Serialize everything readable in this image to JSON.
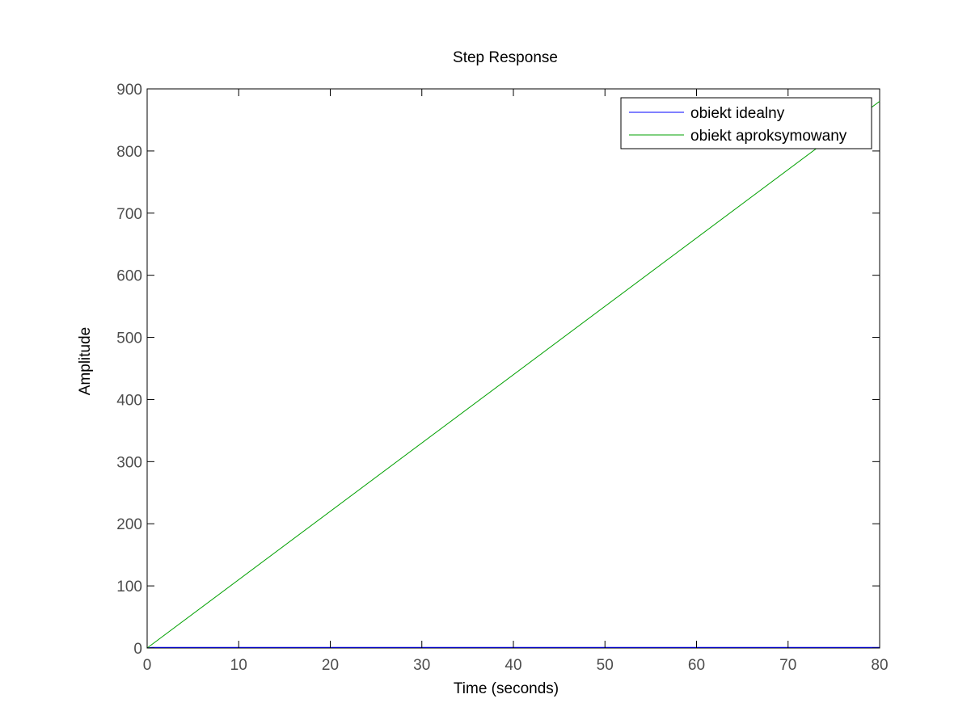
{
  "chart_data": {
    "type": "line",
    "title": "Step Response",
    "xlabel": "Time (seconds)",
    "ylabel": "Amplitude",
    "xlim": [
      0,
      80
    ],
    "ylim": [
      0,
      900
    ],
    "xticks": [
      0,
      10,
      20,
      30,
      40,
      50,
      60,
      70,
      80
    ],
    "yticks": [
      0,
      100,
      200,
      300,
      400,
      500,
      600,
      700,
      800,
      900
    ],
    "grid": false,
    "legend_position": "top-right",
    "series": [
      {
        "name": "obiekt idealny",
        "color": "#0000ff",
        "x": [
          0,
          0.5,
          1,
          80
        ],
        "y": [
          0,
          1,
          1,
          1
        ]
      },
      {
        "name": "obiekt aproksymowany",
        "color": "#00a000",
        "x": [
          0,
          80
        ],
        "y": [
          0,
          880
        ]
      }
    ]
  }
}
